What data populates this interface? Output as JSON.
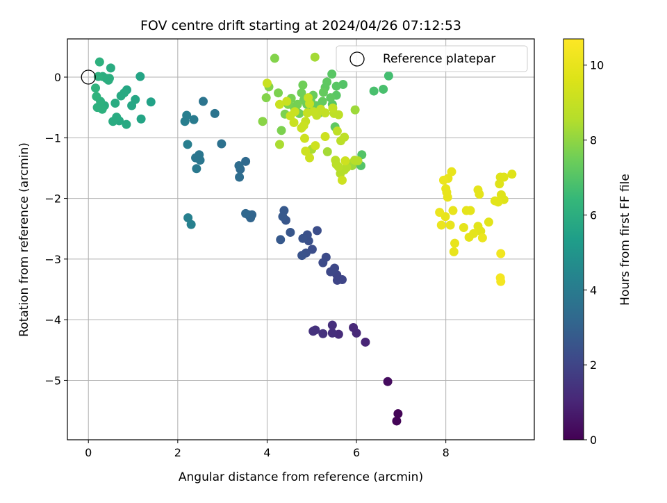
{
  "chart_data": {
    "type": "scatter",
    "title": "FOV centre drift starting at 2024/04/26 07:12:53",
    "xlabel": "Angular distance from reference (arcmin)",
    "ylabel": "Rotation from reference (arcmin)",
    "xlim": [
      -0.47,
      9.98
    ],
    "ylim": [
      -5.98,
      0.63
    ],
    "xticks": [
      0,
      2,
      4,
      6,
      8
    ],
    "yticks": [
      0,
      -1,
      -2,
      -3,
      -4,
      -5
    ],
    "grid": true,
    "legend": {
      "position": "top-right",
      "entries": [
        "Reference platepar"
      ]
    },
    "reference_point": {
      "x": 0,
      "y": 0
    },
    "colorbar": {
      "label": "Hours from first FF file",
      "range": [
        0,
        10.7
      ],
      "ticks": [
        0,
        2,
        4,
        6,
        8,
        10
      ],
      "colormap": "viridis"
    },
    "points": [
      [
        6.93,
        -5.55,
        0.1
      ],
      [
        6.9,
        -5.67,
        0.1
      ],
      [
        6.7,
        -5.02,
        0.3
      ],
      [
        6.2,
        -4.37,
        1.0
      ],
      [
        6.0,
        -4.22,
        1.1
      ],
      [
        5.93,
        -4.13,
        1.1
      ],
      [
        5.6,
        -4.24,
        1.2
      ],
      [
        5.46,
        -4.09,
        1.3
      ],
      [
        5.46,
        -4.22,
        1.3
      ],
      [
        5.25,
        -4.23,
        1.4
      ],
      [
        5.08,
        -4.17,
        1.4
      ],
      [
        5.03,
        -4.19,
        1.4
      ],
      [
        5.68,
        -3.34,
        2.0
      ],
      [
        5.57,
        -3.35,
        2.0
      ],
      [
        5.56,
        -3.26,
        2.0
      ],
      [
        5.51,
        -3.15,
        2.1
      ],
      [
        5.42,
        -3.21,
        2.1
      ],
      [
        5.32,
        -2.97,
        2.2
      ],
      [
        5.25,
        -3.06,
        2.2
      ],
      [
        5.12,
        -2.53,
        2.3
      ],
      [
        5.01,
        -2.84,
        2.3
      ],
      [
        4.93,
        -2.7,
        2.4
      ],
      [
        4.9,
        -2.6,
        2.4
      ],
      [
        4.87,
        -2.9,
        2.4
      ],
      [
        4.8,
        -2.66,
        2.5
      ],
      [
        4.78,
        -2.94,
        2.5
      ],
      [
        4.52,
        -2.56,
        2.6
      ],
      [
        4.42,
        -2.36,
        2.6
      ],
      [
        4.38,
        -2.2,
        2.7
      ],
      [
        4.35,
        -2.3,
        2.7
      ],
      [
        4.3,
        -2.68,
        2.7
      ],
      [
        3.66,
        -2.27,
        3.1
      ],
      [
        3.63,
        -2.32,
        3.1
      ],
      [
        3.58,
        -2.27,
        3.1
      ],
      [
        3.52,
        -2.25,
        3.2
      ],
      [
        3.52,
        -1.39,
        3.3
      ],
      [
        3.4,
        -1.52,
        3.3
      ],
      [
        3.37,
        -1.46,
        3.4
      ],
      [
        3.38,
        -1.65,
        3.4
      ],
      [
        2.98,
        -1.1,
        3.6
      ],
      [
        2.83,
        -0.6,
        3.7
      ],
      [
        2.57,
        -0.4,
        3.7
      ],
      [
        2.5,
        -1.37,
        3.8
      ],
      [
        2.48,
        -1.28,
        3.8
      ],
      [
        2.4,
        -1.33,
        3.8
      ],
      [
        2.42,
        -1.51,
        3.9
      ],
      [
        2.36,
        -0.7,
        4.0
      ],
      [
        2.2,
        -0.63,
        4.1
      ],
      [
        2.16,
        -0.73,
        4.1
      ],
      [
        2.22,
        -1.11,
        4.1
      ],
      [
        2.3,
        -2.43,
        4.2
      ],
      [
        2.23,
        -2.32,
        4.2
      ],
      [
        1.4,
        -0.41,
        5.5
      ],
      [
        1.18,
        -0.69,
        5.6
      ],
      [
        1.16,
        0.01,
        5.6
      ],
      [
        1.05,
        -0.37,
        5.7
      ],
      [
        0.97,
        -0.47,
        5.7
      ],
      [
        0.86,
        -0.21,
        5.7
      ],
      [
        0.85,
        -0.78,
        5.8
      ],
      [
        0.8,
        -0.26,
        5.8
      ],
      [
        0.73,
        -0.31,
        5.8
      ],
      [
        0.69,
        -0.72,
        5.8
      ],
      [
        0.63,
        -0.66,
        5.9
      ],
      [
        0.6,
        -0.43,
        5.9
      ],
      [
        0.55,
        -0.73,
        5.9
      ],
      [
        0.5,
        0.15,
        5.9
      ],
      [
        0.47,
        -0.02,
        6.0
      ],
      [
        0.45,
        -0.05,
        6.0
      ],
      [
        0.4,
        -0.02,
        6.0
      ],
      [
        0.36,
        -0.47,
        6.0
      ],
      [
        0.32,
        0.01,
        6.0
      ],
      [
        0.31,
        -0.53,
        6.1
      ],
      [
        0.27,
        -0.4,
        6.1
      ],
      [
        0.25,
        0.25,
        6.1
      ],
      [
        0.22,
        0.01,
        6.1
      ],
      [
        0.2,
        -0.5,
        6.1
      ],
      [
        0.18,
        -0.32,
        6.2
      ],
      [
        0.16,
        -0.18,
        6.2
      ],
      [
        6.72,
        0.02,
        6.7
      ],
      [
        6.6,
        -0.2,
        6.8
      ],
      [
        6.39,
        -0.23,
        6.8
      ],
      [
        6.1,
        -1.46,
        7.0
      ],
      [
        6.12,
        -1.28,
        7.0
      ],
      [
        5.7,
        -0.12,
        7.0
      ],
      [
        5.55,
        -0.3,
        7.1
      ],
      [
        5.46,
        -0.45,
        7.1
      ],
      [
        5.45,
        0.05,
        7.1
      ],
      [
        5.55,
        -0.15,
        7.1
      ],
      [
        5.52,
        -0.82,
        7.2
      ],
      [
        5.42,
        -0.34,
        7.2
      ],
      [
        5.34,
        -0.08,
        7.2
      ],
      [
        5.3,
        -0.17,
        7.2
      ],
      [
        5.26,
        -0.25,
        7.3
      ],
      [
        5.24,
        -0.4,
        7.3
      ],
      [
        5.15,
        -0.6,
        7.3
      ],
      [
        5.1,
        -0.47,
        7.3
      ],
      [
        5.03,
        -0.3,
        7.4
      ],
      [
        4.98,
        -0.4,
        7.4
      ],
      [
        4.95,
        -0.56,
        7.4
      ],
      [
        4.89,
        -0.45,
        7.4
      ],
      [
        4.82,
        -0.38,
        7.5
      ],
      [
        4.8,
        -0.13,
        7.5
      ],
      [
        4.77,
        -0.26,
        7.5
      ],
      [
        4.72,
        -0.6,
        7.5
      ],
      [
        4.68,
        -0.45,
        7.6
      ],
      [
        4.65,
        -0.56,
        7.6
      ],
      [
        4.6,
        -0.49,
        7.6
      ],
      [
        4.54,
        -0.35,
        7.6
      ],
      [
        4.47,
        -0.45,
        7.7
      ],
      [
        4.4,
        -0.61,
        7.7
      ],
      [
        4.32,
        -0.88,
        7.7
      ],
      [
        4.25,
        -0.26,
        7.7
      ],
      [
        4.17,
        0.31,
        7.8
      ],
      [
        4.04,
        -0.16,
        7.8
      ],
      [
        3.98,
        -0.34,
        7.8
      ],
      [
        3.9,
        -0.73,
        7.9
      ],
      [
        5.97,
        -0.54,
        8.2
      ],
      [
        5.9,
        -1.46,
        8.2
      ],
      [
        5.8,
        -1.42,
        8.3
      ],
      [
        5.07,
        0.33,
        8.3
      ],
      [
        5.35,
        -1.23,
        8.3
      ],
      [
        5.0,
        -1.19,
        8.4
      ],
      [
        4.28,
        -1.11,
        8.4
      ],
      [
        6.03,
        -1.38,
        8.6
      ],
      [
        5.96,
        -1.37,
        8.6
      ],
      [
        5.78,
        -1.49,
        8.6
      ],
      [
        5.73,
        -1.53,
        8.6
      ],
      [
        5.64,
        -1.59,
        8.6
      ],
      [
        5.6,
        -1.48,
        8.7
      ],
      [
        5.55,
        -1.44,
        8.7
      ],
      [
        5.53,
        -1.37,
        8.7
      ],
      [
        5.65,
        -1.05,
        8.7
      ],
      [
        5.73,
        -0.99,
        8.8
      ],
      [
        5.57,
        -0.89,
        8.8
      ],
      [
        5.6,
        -0.62,
        8.8
      ],
      [
        5.5,
        -0.6,
        8.8
      ],
      [
        5.47,
        -0.51,
        8.9
      ],
      [
        5.3,
        -0.59,
        8.9
      ],
      [
        5.2,
        -0.53,
        8.9
      ],
      [
        5.11,
        -0.63,
        8.9
      ],
      [
        5.04,
        -0.57,
        9.0
      ],
      [
        4.95,
        -0.44,
        9.0
      ],
      [
        4.92,
        -0.34,
        9.0
      ],
      [
        4.9,
        -0.59,
        9.0
      ],
      [
        4.86,
        -0.73,
        9.0
      ],
      [
        4.82,
        -0.8,
        9.1
      ],
      [
        4.77,
        -0.84,
        9.1
      ],
      [
        4.62,
        -0.57,
        9.1
      ],
      [
        4.6,
        -0.75,
        9.1
      ],
      [
        4.52,
        -0.64,
        9.1
      ],
      [
        4.44,
        -0.4,
        9.1
      ],
      [
        4.28,
        -0.45,
        9.1
      ],
      [
        4.0,
        -0.1,
        9.1
      ],
      [
        4.84,
        -1.01,
        9.2
      ],
      [
        4.86,
        -1.22,
        9.2
      ],
      [
        4.95,
        -1.33,
        9.2
      ],
      [
        5.08,
        -1.13,
        9.2
      ],
      [
        5.3,
        -0.98,
        9.2
      ],
      [
        5.68,
        -1.7,
        9.2
      ],
      [
        5.75,
        -1.38,
        9.2
      ],
      [
        9.3,
        -2.02,
        9.7
      ],
      [
        9.24,
        -1.94,
        9.7
      ],
      [
        9.2,
        -1.76,
        9.7
      ],
      [
        9.22,
        -1.65,
        9.7
      ],
      [
        9.3,
        -1.65,
        9.7
      ],
      [
        9.48,
        -1.6,
        9.7
      ],
      [
        9.17,
        -2.06,
        9.8
      ],
      [
        9.1,
        -2.04,
        9.8
      ],
      [
        8.96,
        -2.39,
        9.8
      ],
      [
        8.78,
        -2.54,
        9.8
      ],
      [
        8.72,
        -2.46,
        9.8
      ],
      [
        8.75,
        -1.93,
        9.9
      ],
      [
        8.72,
        -1.86,
        9.9
      ],
      [
        8.62,
        -2.58,
        9.9
      ],
      [
        8.52,
        -2.64,
        9.9
      ],
      [
        8.55,
        -2.2,
        9.9
      ],
      [
        8.46,
        -2.2,
        9.9
      ],
      [
        8.4,
        -2.48,
        9.9
      ],
      [
        8.2,
        -2.74,
        10.0
      ],
      [
        8.18,
        -2.88,
        10.0
      ],
      [
        8.16,
        -2.2,
        10.0
      ],
      [
        8.13,
        -1.56,
        10.0
      ],
      [
        8.1,
        -2.44,
        10.0
      ],
      [
        8.05,
        -1.67,
        10.0
      ],
      [
        8.04,
        -1.98,
        10.0
      ],
      [
        8.02,
        -1.9,
        10.0
      ],
      [
        8.0,
        -1.84,
        10.0
      ],
      [
        7.99,
        -2.3,
        10.0
      ],
      [
        7.95,
        -1.7,
        10.1
      ],
      [
        7.9,
        -2.44,
        10.1
      ],
      [
        7.86,
        -2.23,
        10.1
      ],
      [
        8.82,
        -2.65,
        10.1
      ],
      [
        9.23,
        -2.91,
        10.3
      ],
      [
        9.22,
        -3.31,
        10.4
      ],
      [
        9.23,
        -3.37,
        10.4
      ]
    ]
  }
}
